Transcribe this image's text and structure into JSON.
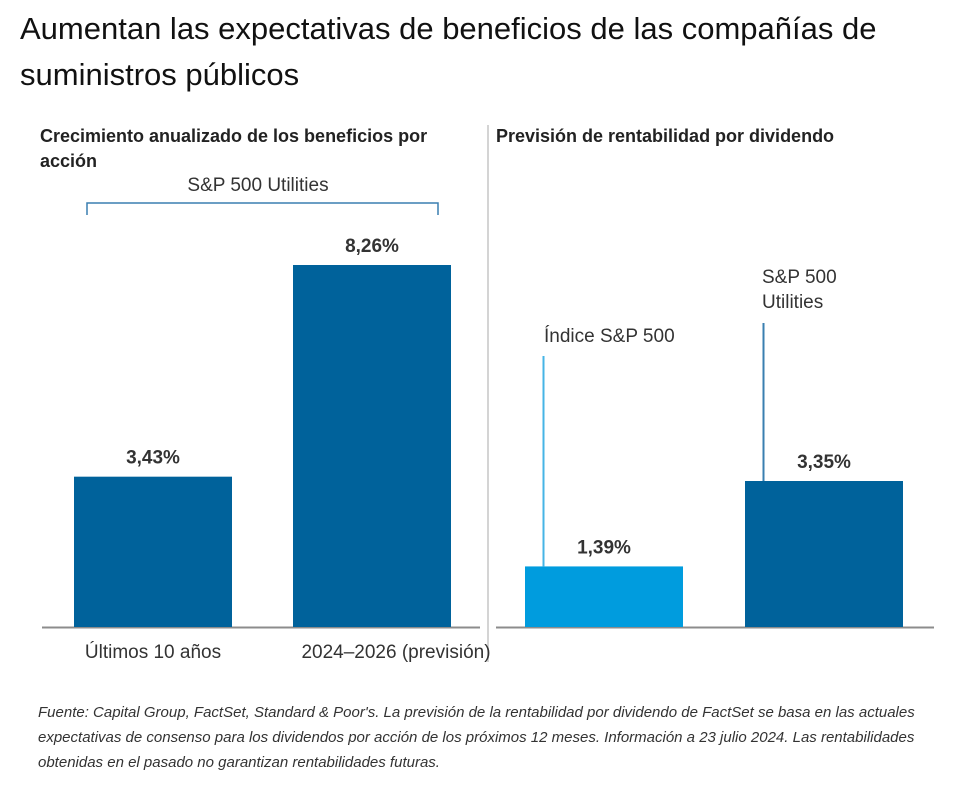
{
  "title": "Aumentan las expectativas de beneficios de las compañías de suministros públicos",
  "footnote": "Fuente: Capital Group, FactSet, Standard & Poor's. La previsión de la rentabilidad por dividendo de FactSet se basa en las actuales expectativas de consenso para los dividendos por acción de los próximos 12 meses. Información a 23 julio 2024. Las rentabilidades obtenidas en el pasado no garantizan rentabilidades futuras.",
  "colors": {
    "dark_blue": "#00629b",
    "light_blue": "#009cde",
    "bracket_dark": "#3a7fb0",
    "bracket_light": "#46b4e6",
    "axis": "#8c8c8c"
  },
  "chart_data": [
    {
      "type": "bar",
      "title": "Crecimiento anualizado de los beneficios por acción",
      "group_label": "S&P 500 Utilities",
      "categories": [
        "Últimos 10 años",
        "2024–2026 (previsión)"
      ],
      "values": [
        3.43,
        8.26
      ],
      "value_labels": [
        "3,43%",
        "8,26%"
      ],
      "unit": "%",
      "xlabel": "",
      "ylabel": "",
      "ylim": [
        0,
        8.26
      ],
      "grid": false,
      "legend": "none"
    },
    {
      "type": "bar",
      "title": "Previsión de rentabilidad por dividendo",
      "categories": [
        "Índice S&P 500",
        "S&P 500 Utilities"
      ],
      "category_labels": [
        [
          "Índice S&P 500"
        ],
        [
          "S&P 500",
          "Utilities"
        ]
      ],
      "values": [
        1.39,
        3.35
      ],
      "value_labels": [
        "1,39%",
        "3,35%"
      ],
      "unit": "%",
      "xlabel": "",
      "ylabel": "",
      "ylim": [
        0,
        3.35
      ],
      "grid": false,
      "legend": "none"
    }
  ]
}
